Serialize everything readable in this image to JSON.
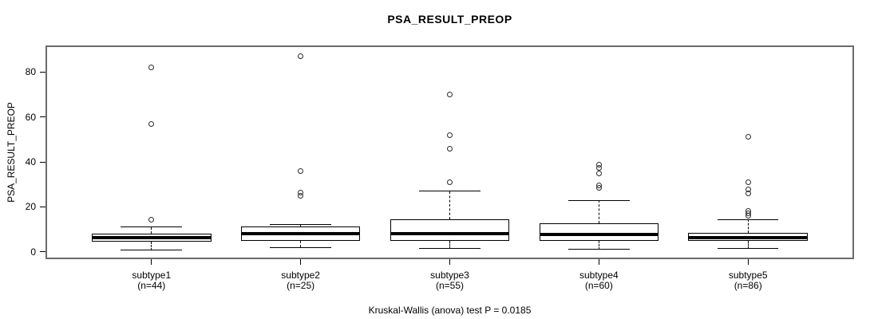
{
  "title": "PSA_RESULT_PREOP",
  "ylabel": "PSA_RESULT_PREOP",
  "annotation": "Kruskal-Wallis (anova) test P = 0.0185",
  "chart_data": {
    "type": "box",
    "title": "PSA_RESULT_PREOP",
    "xlabel": "",
    "ylabel": "PSA_RESULT_PREOP",
    "ylim": [
      -2.5,
      91
    ],
    "xlim": [
      0.3,
      5.7
    ],
    "yticks": [
      0,
      20,
      40,
      60,
      80
    ],
    "grid": false,
    "legend": "none",
    "box_width_units": 0.8,
    "cap_width_units": 0.41,
    "categories": [
      "subtype1",
      "subtype2",
      "subtype3",
      "subtype4",
      "subtype5"
    ],
    "groups": [
      {
        "label": "subtype1",
        "n_label": "(n=44)",
        "n": 44,
        "position": 1,
        "whisker_low": 0.7,
        "q1": 4.5,
        "median": 6.2,
        "q3": 8.0,
        "whisker_high": 11.0,
        "outliers": [
          14.5,
          57,
          82
        ]
      },
      {
        "label": "subtype2",
        "n_label": "(n=25)",
        "n": 25,
        "position": 2,
        "whisker_low": 2.0,
        "q1": 4.9,
        "median": 8.3,
        "q3": 11.4,
        "whisker_high": 12.1,
        "outliers": [
          25,
          26.2,
          36,
          87
        ]
      },
      {
        "label": "subtype3",
        "n_label": "(n=55)",
        "n": 55,
        "position": 3,
        "whisker_low": 1.5,
        "q1": 4.8,
        "median": 8.0,
        "q3": 14.4,
        "whisker_high": 27.0,
        "outliers": [
          31,
          46,
          52,
          70
        ]
      },
      {
        "label": "subtype4",
        "n_label": "(n=60)",
        "n": 60,
        "position": 4,
        "whisker_low": 1.1,
        "q1": 4.8,
        "median": 7.9,
        "q3": 12.9,
        "whisker_high": 23.0,
        "outliers": [
          28.5,
          29.5,
          35,
          37.5,
          38.7
        ]
      },
      {
        "label": "subtype5",
        "n_label": "(n=86)",
        "n": 86,
        "position": 5,
        "whisker_low": 1.5,
        "q1": 4.8,
        "median": 6.4,
        "q3": 8.6,
        "whisker_high": 14.4,
        "outliers": [
          16,
          17,
          18.2,
          26,
          27.8,
          31,
          51
        ]
      }
    ],
    "colors": {
      "frame": "#6b6b6b",
      "line": "#000000",
      "box_fill": "#ffffff",
      "background": "#ffffff"
    }
  }
}
